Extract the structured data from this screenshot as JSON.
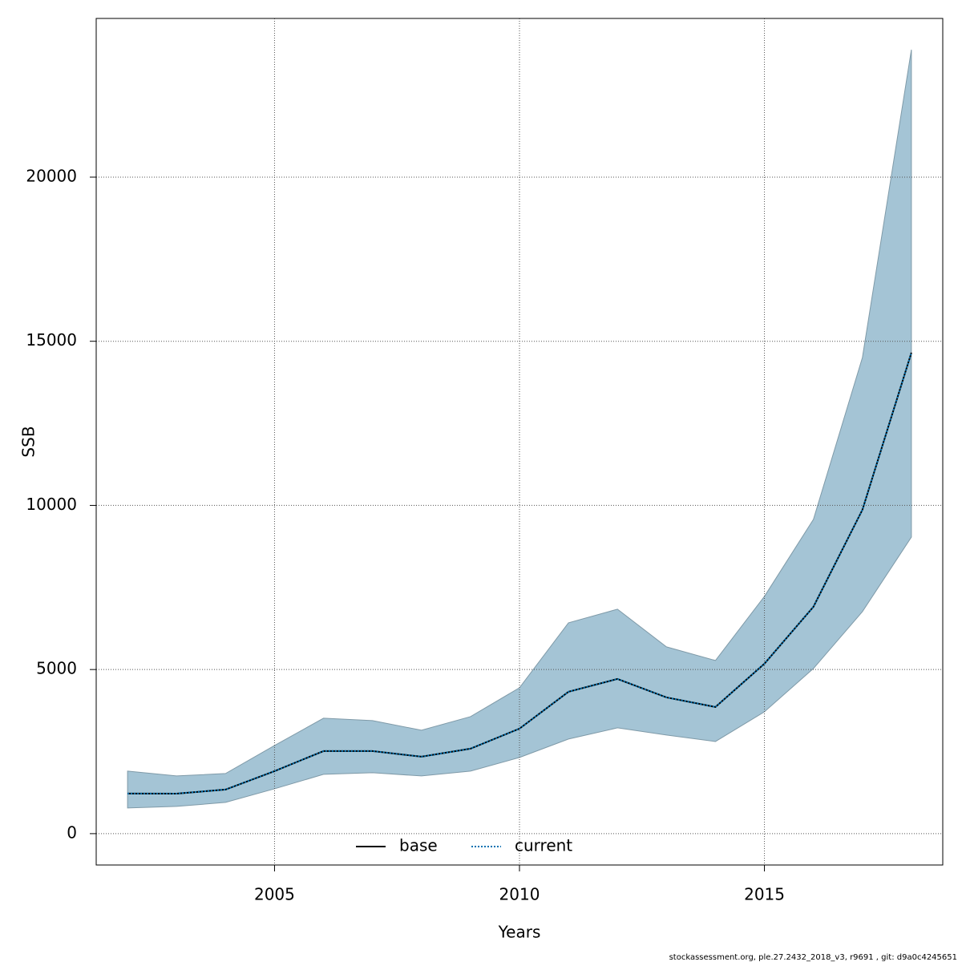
{
  "chart_data": {
    "type": "line",
    "x_label": "Years",
    "y_label": "SSB",
    "x": [
      2002,
      2003,
      2004,
      2005,
      2006,
      2007,
      2008,
      2009,
      2010,
      2011,
      2012,
      2013,
      2014,
      2015,
      2016,
      2017,
      2018
    ],
    "series": [
      {
        "name": "base",
        "color": "#000000",
        "dash": false,
        "values": [
          1221,
          1220,
          1343,
          1905,
          2515,
          2515,
          2344,
          2589,
          3199,
          4322,
          4713,
          4151,
          3858,
          5177,
          6911,
          9866,
          14652
        ]
      },
      {
        "name": "current",
        "color": "#0072b2",
        "dash": true,
        "values": [
          1221,
          1220,
          1343,
          1905,
          2515,
          2515,
          2344,
          2589,
          3199,
          4322,
          4713,
          4151,
          3858,
          5177,
          6911,
          9866,
          14652
        ]
      }
    ],
    "band": {
      "color": "#a4c4d5",
      "upper": [
        1905,
        1758,
        1832,
        2686,
        3516,
        3443,
        3150,
        3565,
        4444,
        6422,
        6838,
        5690,
        5275,
        7228,
        9573,
        14505,
        23883
      ],
      "lower": [
        781,
        830,
        952,
        1367,
        1807,
        1856,
        1758,
        1905,
        2320,
        2882,
        3223,
        3004,
        2808,
        3712,
        5031,
        6764,
        9035
      ]
    },
    "xlim": [
      2001.36,
      2018.64
    ],
    "ylim": [
      -955,
      24835
    ],
    "xticks": [
      2005,
      2010,
      2015
    ],
    "yticks": [
      0,
      5000,
      10000,
      15000,
      20000
    ],
    "grid": true,
    "legend": "bottom"
  },
  "footer": "stockassessment.org, ple.27.2432_2018_v3, r9691 , git: d9a0c4245651"
}
